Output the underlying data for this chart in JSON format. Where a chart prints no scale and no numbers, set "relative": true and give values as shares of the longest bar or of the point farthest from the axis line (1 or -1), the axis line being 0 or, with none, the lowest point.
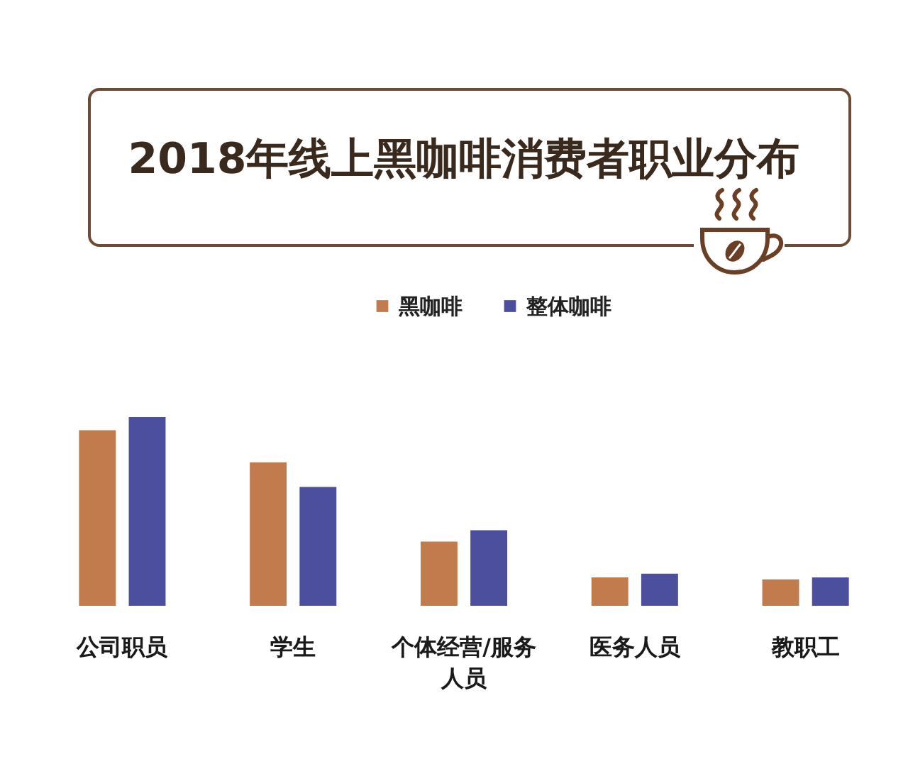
{
  "chart_data": {
    "type": "bar",
    "title": "2018年线上黑咖啡消费者职业分布",
    "categories": [
      "公司职员",
      "学生",
      "个体经营/服务人员",
      "医务人员",
      "教职工"
    ],
    "relative": true,
    "series": [
      {
        "name": "黑咖啡",
        "color": "#c27b4c",
        "values": [
          0.93,
          0.76,
          0.34,
          0.15,
          0.14
        ]
      },
      {
        "name": "整体咖啡",
        "color": "#4b4f9e",
        "values": [
          1,
          0.63,
          0.4,
          0.17,
          0.15
        ]
      }
    ],
    "legend": "top"
  }
}
